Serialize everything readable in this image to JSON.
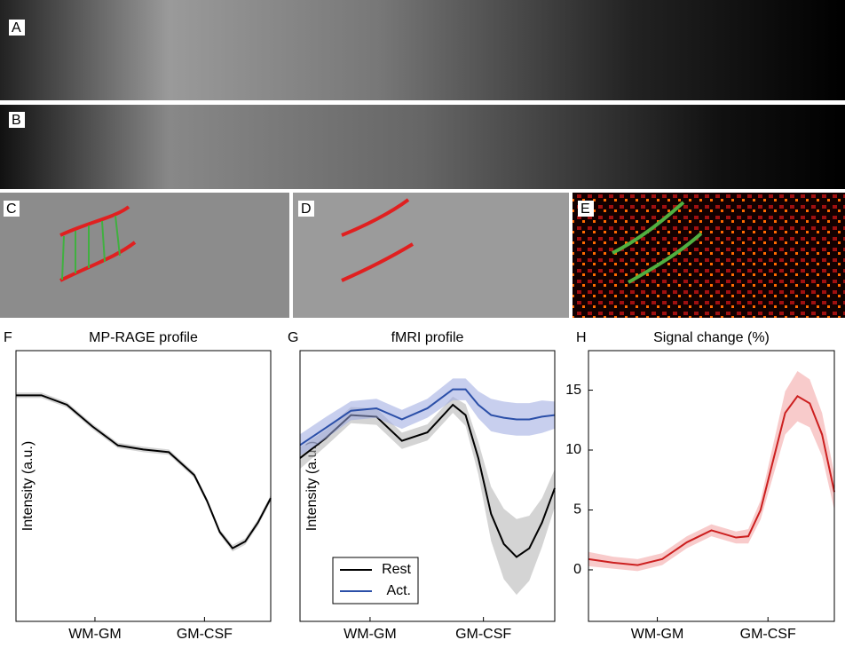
{
  "image_panels": [
    {
      "label": "A"
    },
    {
      "label": "B"
    },
    {
      "label": "C"
    },
    {
      "label": "D"
    },
    {
      "label": "E"
    }
  ],
  "chart_data": [
    {
      "type": "line",
      "panel": "F",
      "title": "MP-RAGE profile",
      "ylabel": "Intensity (a.u.)",
      "x": [
        0,
        1,
        2,
        3,
        4,
        5,
        6,
        7,
        7.5,
        8,
        8.5,
        9,
        9.5,
        10
      ],
      "xlim": [
        0,
        10
      ],
      "xticks": [
        {
          "value": 3.1,
          "label": "WM-GM"
        },
        {
          "value": 7.4,
          "label": "GM-CSF"
        }
      ],
      "ylim": [
        0,
        100
      ],
      "series": [
        {
          "color": "#000000",
          "band_color": "#b0b0b0",
          "values": [
            83.5,
            83.5,
            80,
            72,
            65,
            63.5,
            62.5,
            54,
            44.5,
            33,
            27,
            29.5,
            36.5,
            45.5
          ],
          "error": [
            1,
            1,
            1,
            1,
            1,
            1,
            1,
            1,
            1,
            1,
            1.2,
            1.2,
            1.2,
            1.2
          ]
        }
      ]
    },
    {
      "type": "line",
      "panel": "G",
      "title": "fMRI profile",
      "ylabel": "Intensity (a.u.)",
      "x": [
        0,
        1,
        2,
        3,
        4,
        5,
        6,
        6.5,
        7,
        7.5,
        8,
        8.5,
        9,
        9.5,
        10
      ],
      "xlim": [
        0,
        10
      ],
      "xticks": [
        {
          "value": 2.75,
          "label": "WM-GM"
        },
        {
          "value": 7.2,
          "label": "GM-CSF"
        }
      ],
      "ylim": [
        0,
        100
      ],
      "legend": "lower left",
      "series": [
        {
          "name": "Rest",
          "color": "#000000",
          "band_color": "#b0b0b0",
          "values": [
            60.3,
            67.6,
            76.2,
            75.6,
            66.7,
            69.8,
            80,
            76.2,
            60.3,
            39.7,
            28.6,
            23.8,
            27,
            36.5,
            49.2
          ],
          "error": [
            4,
            3,
            3,
            3,
            3,
            3,
            3,
            4,
            6,
            10,
            13,
            14,
            12,
            9,
            7
          ]
        },
        {
          "name": "Act.",
          "color": "#2b4fa8",
          "band_color": "#9aa8e0",
          "values": [
            65.1,
            71.4,
            77.8,
            78.7,
            74.6,
            78.7,
            85.7,
            85.7,
            80,
            76.2,
            75.2,
            74.6,
            74.6,
            75.6,
            76.2
          ],
          "error": [
            4,
            4,
            3.5,
            3.5,
            3.5,
            3.5,
            4,
            4,
            5,
            6,
            6,
            6,
            6,
            6,
            5
          ]
        }
      ]
    },
    {
      "type": "line",
      "panel": "H",
      "title": "Signal change (%)",
      "x": [
        0,
        1,
        2,
        3,
        4,
        5,
        6,
        6.5,
        7,
        8,
        8.5,
        9,
        9.5,
        10
      ],
      "xlim": [
        0,
        10
      ],
      "xticks": [
        {
          "value": 2.8,
          "label": "WM-GM"
        },
        {
          "value": 7.3,
          "label": "GM-CSF"
        }
      ],
      "ylim": [
        -4.3,
        18.3
      ],
      "yticks": [
        0,
        5,
        10,
        15
      ],
      "series": [
        {
          "color": "#cc1f1f",
          "band_color": "#f2a0a0",
          "values": [
            0.9,
            0.6,
            0.4,
            0.9,
            2.3,
            3.3,
            2.7,
            2.8,
            5,
            13.1,
            14.5,
            13.9,
            11.3,
            6.5
          ],
          "error": [
            0.6,
            0.5,
            0.5,
            0.5,
            0.5,
            0.5,
            0.5,
            0.6,
            0.8,
            1.8,
            2.1,
            2,
            1.8,
            1.5
          ]
        }
      ]
    }
  ]
}
